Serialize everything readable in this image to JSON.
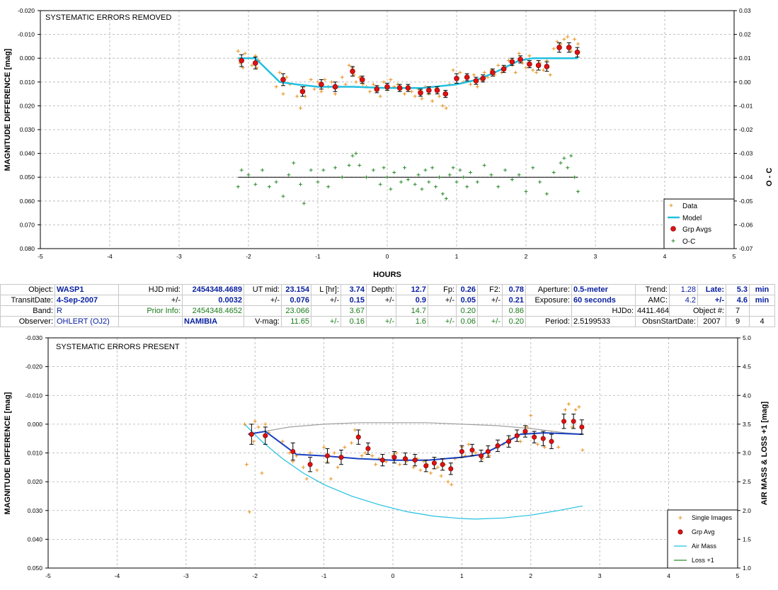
{
  "chart_data": [
    {
      "type": "scatter",
      "title": "SYSTEMATIC ERRORS REMOVED",
      "xlabel": "HOURS",
      "ylabel": "MAGNITUDE DIFFERENCE [mag]",
      "y2label": "O - C",
      "xlim": [
        -5,
        5
      ],
      "ylim": [
        -0.02,
        0.08
      ],
      "y_inverted": true,
      "y2lim": [
        -0.07,
        0.03
      ],
      "xticks": [
        "-5",
        "-4",
        "-3",
        "-2",
        "-1",
        "0",
        "1",
        "2",
        "3",
        "4",
        "5"
      ],
      "yticks": [
        "-0.020",
        "-0.010",
        "0.000",
        "0.010",
        "0.020",
        "0.030",
        "0.040",
        "0.050",
        "0.060",
        "0.070",
        "0.080"
      ],
      "y2ticks": [
        "-0.07",
        "-0.06",
        "-0.05",
        "-0.04",
        "-0.03",
        "-0.02",
        "-0.01",
        "0.00",
        "0.01",
        "0.02",
        "0.03"
      ],
      "grid": true,
      "legend_position": "bottom-right",
      "legend": [
        "Data",
        "Model",
        "Grp Avgs",
        "O-C"
      ],
      "colors": {
        "data": "#e8901a",
        "model": "#22c0e0",
        "grp": "#e01010",
        "oc": "#2a8a2a",
        "ocline": "#000000"
      },
      "oc_baseline": 0.05,
      "grp_avgs": {
        "x": [
          -2.1,
          -1.9,
          -1.5,
          -1.22,
          -0.95,
          -0.75,
          -0.5,
          -0.36,
          -0.15,
          0.0,
          0.18,
          0.3,
          0.48,
          0.6,
          0.72,
          0.84,
          1.0,
          1.15,
          1.28,
          1.38,
          1.52,
          1.68,
          1.8,
          1.92,
          2.05,
          2.18,
          2.3,
          2.48,
          2.62,
          2.74
        ],
        "y": [
          0.001,
          0.002,
          0.009,
          0.014,
          0.011,
          0.012,
          0.0055,
          0.009,
          0.013,
          0.012,
          0.0125,
          0.0125,
          0.0145,
          0.0135,
          0.0135,
          0.015,
          0.0085,
          0.008,
          0.0095,
          0.0085,
          0.006,
          0.0045,
          0.0015,
          0.0005,
          0.0025,
          0.003,
          0.0035,
          -0.0045,
          -0.0045,
          -0.0025
        ],
        "err": [
          0.0025,
          0.0025,
          0.0025,
          0.002,
          0.002,
          0.002,
          0.002,
          0.0015,
          0.0015,
          0.0015,
          0.0015,
          0.0015,
          0.0015,
          0.0015,
          0.0015,
          0.0015,
          0.002,
          0.0015,
          0.0015,
          0.0015,
          0.0015,
          0.0015,
          0.0015,
          0.0015,
          0.0015,
          0.002,
          0.002,
          0.002,
          0.002,
          0.002
        ]
      },
      "model": {
        "x": [
          -2.15,
          -1.9,
          -1.55,
          -1.3,
          -1.0,
          -0.5,
          0.0,
          0.5,
          1.0,
          1.3,
          1.55,
          1.9,
          2.1,
          2.75
        ],
        "y": [
          0.0,
          0.0,
          0.01,
          0.011,
          0.012,
          0.012,
          0.0125,
          0.0125,
          0.011,
          0.009,
          0.006,
          0.001,
          0.0,
          0.0
        ]
      },
      "data_points": {
        "x": [
          -2.15,
          -2.12,
          -2.08,
          -2.05,
          -2.0,
          -1.95,
          -1.9,
          -1.88,
          -1.85,
          -1.6,
          -1.55,
          -1.5,
          -1.45,
          -1.4,
          -1.3,
          -1.25,
          -1.2,
          -1.18,
          -1.1,
          -1.05,
          -1.0,
          -0.95,
          -0.9,
          -0.85,
          -0.8,
          -0.75,
          -0.7,
          -0.65,
          -0.6,
          -0.55,
          -0.5,
          -0.48,
          -0.45,
          -0.4,
          -0.35,
          -0.3,
          -0.25,
          -0.2,
          -0.15,
          -0.1,
          -0.05,
          0.0,
          0.05,
          0.1,
          0.15,
          0.2,
          0.25,
          0.3,
          0.35,
          0.4,
          0.45,
          0.5,
          0.55,
          0.6,
          0.65,
          0.7,
          0.75,
          0.8,
          0.85,
          0.9,
          0.95,
          1.0,
          1.05,
          1.1,
          1.15,
          1.2,
          1.25,
          1.3,
          1.35,
          1.4,
          1.45,
          1.5,
          1.55,
          1.6,
          1.65,
          1.7,
          1.75,
          1.8,
          1.85,
          1.9,
          1.95,
          2.0,
          2.05,
          2.1,
          2.15,
          2.2,
          2.25,
          2.3,
          2.35,
          2.4,
          2.45,
          2.5,
          2.55,
          2.6,
          2.65,
          2.7,
          2.75
        ],
        "y": [
          -0.003,
          0.002,
          0.004,
          -0.002,
          0.0,
          0.003,
          -0.001,
          0.004,
          0.001,
          0.012,
          0.006,
          0.015,
          0.008,
          0.011,
          0.016,
          0.021,
          0.012,
          0.016,
          0.009,
          0.013,
          0.01,
          0.014,
          0.009,
          0.012,
          0.01,
          0.015,
          0.012,
          0.008,
          0.011,
          0.003,
          0.004,
          0.007,
          0.01,
          0.008,
          0.011,
          0.012,
          0.014,
          0.011,
          0.012,
          0.016,
          0.01,
          0.013,
          0.009,
          0.012,
          0.011,
          0.013,
          0.015,
          0.012,
          0.014,
          0.016,
          0.013,
          0.017,
          0.012,
          0.015,
          0.018,
          0.013,
          0.016,
          0.02,
          0.021,
          0.011,
          0.005,
          0.009,
          0.006,
          0.01,
          0.008,
          0.011,
          0.007,
          0.012,
          0.009,
          0.006,
          0.008,
          0.005,
          0.007,
          0.003,
          0.006,
          0.004,
          0.001,
          0.003,
          0.006,
          -0.002,
          0.002,
          0.004,
          -0.001,
          0.005,
          0.006,
          0.002,
          0.005,
          0.001,
          0.007,
          -0.004,
          -0.007,
          -0.006,
          -0.008,
          -0.009,
          -0.003,
          -0.008,
          -0.006
        ]
      },
      "oc_points": {
        "x": [
          -2.15,
          -2.1,
          -2.0,
          -1.9,
          -1.8,
          -1.7,
          -1.6,
          -1.5,
          -1.42,
          -1.35,
          -1.25,
          -1.2,
          -1.1,
          -1.0,
          -0.92,
          -0.85,
          -0.75,
          -0.65,
          -0.55,
          -0.5,
          -0.45,
          -0.4,
          -0.3,
          -0.2,
          -0.1,
          -0.05,
          0.0,
          0.05,
          0.1,
          0.2,
          0.25,
          0.3,
          0.4,
          0.45,
          0.5,
          0.55,
          0.6,
          0.65,
          0.7,
          0.75,
          0.8,
          0.85,
          0.9,
          0.95,
          1.0,
          1.05,
          1.1,
          1.15,
          1.2,
          1.3,
          1.4,
          1.5,
          1.6,
          1.7,
          1.8,
          1.9,
          2.0,
          2.1,
          2.2,
          2.3,
          2.4,
          2.5,
          2.55,
          2.6,
          2.65,
          2.7,
          2.75
        ],
        "y": [
          0.054,
          0.047,
          0.049,
          0.053,
          0.047,
          0.054,
          0.052,
          0.058,
          0.049,
          0.044,
          0.053,
          0.061,
          0.047,
          0.052,
          0.047,
          0.054,
          0.046,
          0.05,
          0.045,
          0.041,
          0.04,
          0.045,
          0.05,
          0.047,
          0.053,
          0.046,
          0.05,
          0.055,
          0.048,
          0.052,
          0.046,
          0.051,
          0.053,
          0.049,
          0.055,
          0.047,
          0.052,
          0.046,
          0.054,
          0.05,
          0.057,
          0.059,
          0.049,
          0.046,
          0.052,
          0.047,
          0.05,
          0.054,
          0.048,
          0.052,
          0.045,
          0.049,
          0.054,
          0.047,
          0.051,
          0.049,
          0.056,
          0.046,
          0.052,
          0.057,
          0.048,
          0.044,
          0.042,
          0.046,
          0.041,
          0.05,
          0.056
        ]
      }
    },
    {
      "type": "scatter",
      "title": "SYSTEMATIC ERRORS PRESENT",
      "ylabel": "MAGNITUDE DIFFERENCE [mag]",
      "y2label": "AIR MASS & LOSS +1 [mag]",
      "xlim": [
        -5,
        5
      ],
      "ylim": [
        -0.03,
        0.05
      ],
      "y_inverted": true,
      "y2lim": [
        1.0,
        5.0
      ],
      "xticks": [
        "-5",
        "-4",
        "-3",
        "-2",
        "-1",
        "0",
        "1",
        "2",
        "3",
        "4",
        "5"
      ],
      "yticks": [
        "-0.030",
        "-0.020",
        "-0.010",
        "0.000",
        "0.010",
        "0.020",
        "0.030",
        "0.040",
        "0.050"
      ],
      "y2ticks": [
        "5.0",
        "4.5",
        "4.0",
        "3.5",
        "3.0",
        "2.5",
        "2.0",
        "1.5",
        "1.0"
      ],
      "grid": true,
      "legend_position": "bottom-right",
      "legend": [
        "Single Images",
        "Grp Avg",
        "Air Mass",
        "Loss +1"
      ],
      "colors": {
        "single": "#e8901a",
        "grp": "#e01010",
        "airmass": "#22c0e0",
        "loss": "#2a8a2a",
        "model": "#1840c0",
        "envelope": "#a0a0a0"
      },
      "grp_avgs": {
        "x": [
          -2.05,
          -1.85,
          -1.45,
          -1.2,
          -0.95,
          -0.75,
          -0.5,
          -0.36,
          -0.15,
          0.02,
          0.18,
          0.32,
          0.48,
          0.6,
          0.72,
          0.84,
          1.0,
          1.15,
          1.28,
          1.38,
          1.52,
          1.68,
          1.8,
          1.92,
          2.05,
          2.18,
          2.3,
          2.48,
          2.62,
          2.74
        ],
        "y": [
          0.0035,
          0.004,
          0.0095,
          0.014,
          0.011,
          0.0115,
          0.0045,
          0.0085,
          0.0125,
          0.0115,
          0.012,
          0.0125,
          0.0145,
          0.0135,
          0.014,
          0.0155,
          0.0095,
          0.009,
          0.011,
          0.0095,
          0.0075,
          0.006,
          0.004,
          0.0025,
          0.0045,
          0.005,
          0.006,
          -0.001,
          -0.001,
          0.001
        ],
        "err": [
          0.0035,
          0.003,
          0.003,
          0.0025,
          0.0025,
          0.0025,
          0.0025,
          0.002,
          0.002,
          0.002,
          0.002,
          0.002,
          0.002,
          0.002,
          0.002,
          0.002,
          0.002,
          0.002,
          0.002,
          0.002,
          0.002,
          0.002,
          0.002,
          0.002,
          0.002,
          0.0025,
          0.0025,
          0.0025,
          0.0025,
          0.0025
        ]
      },
      "model": {
        "x": [
          -2.1,
          -1.85,
          -1.4,
          -1.0,
          -0.5,
          0.0,
          0.5,
          1.0,
          1.3,
          1.55,
          1.85,
          2.2,
          2.75
        ],
        "y": [
          0.0035,
          0.0025,
          0.0105,
          0.011,
          0.012,
          0.0125,
          0.0125,
          0.0115,
          0.0105,
          0.0075,
          0.0035,
          0.003,
          0.0035
        ]
      },
      "envelope": {
        "x": [
          -2.1,
          -1.5,
          -1.0,
          -0.5,
          0.0,
          0.5,
          1.0,
          1.5,
          2.0,
          2.5,
          2.75
        ],
        "y": [
          0.0035,
          0.001,
          0.0,
          -0.0005,
          -0.0005,
          -0.0005,
          0.0,
          0.0005,
          0.0015,
          0.003,
          0.0035
        ]
      },
      "airmass": {
        "x": [
          -2.15,
          -1.9,
          -1.6,
          -1.3,
          -1.0,
          -0.6,
          -0.2,
          0.2,
          0.6,
          1.0,
          1.2,
          1.6,
          2.0,
          2.4,
          2.75
        ],
        "y": [
          3.5,
          3.2,
          2.9,
          2.65,
          2.45,
          2.25,
          2.1,
          1.98,
          1.9,
          1.86,
          1.85,
          1.87,
          1.92,
          2.0,
          2.08
        ]
      },
      "single_images": {
        "x": [
          -2.15,
          -2.12,
          -2.08,
          -2.05,
          -2.02,
          -2.0,
          -1.95,
          -1.9,
          -1.85,
          -1.8,
          -1.6,
          -1.5,
          -1.45,
          -1.4,
          -1.3,
          -1.25,
          -1.2,
          -1.1,
          -1.0,
          -0.95,
          -0.9,
          -0.85,
          -0.8,
          -0.75,
          -0.7,
          -0.6,
          -0.55,
          -0.5,
          -0.45,
          -0.4,
          -0.3,
          -0.25,
          -0.2,
          -0.1,
          0.0,
          0.05,
          0.1,
          0.2,
          0.3,
          0.35,
          0.4,
          0.45,
          0.5,
          0.55,
          0.6,
          0.65,
          0.7,
          0.75,
          0.8,
          0.85,
          0.9,
          1.0,
          1.05,
          1.1,
          1.2,
          1.3,
          1.4,
          1.5,
          1.6,
          1.7,
          1.8,
          1.85,
          1.9,
          1.95,
          2.0,
          2.05,
          2.1,
          2.2,
          2.3,
          2.4,
          2.5,
          2.55,
          2.6,
          2.65,
          2.7,
          2.75
        ],
        "y": [
          0.0,
          0.014,
          0.0305,
          0.004,
          0.006,
          -0.001,
          0.001,
          0.017,
          0.0,
          0.003,
          0.006,
          0.01,
          0.013,
          0.011,
          0.015,
          0.019,
          0.01,
          0.016,
          0.008,
          0.013,
          0.019,
          0.01,
          0.015,
          0.012,
          0.008,
          0.0065,
          0.002,
          0.004,
          0.011,
          0.01,
          0.011,
          0.014,
          0.012,
          0.013,
          0.011,
          0.01,
          0.014,
          0.013,
          0.015,
          0.012,
          0.016,
          0.013,
          0.014,
          0.017,
          0.013,
          0.015,
          0.018,
          0.014,
          0.02,
          0.021,
          0.012,
          0.008,
          0.011,
          0.007,
          0.01,
          0.012,
          0.011,
          0.008,
          0.007,
          0.005,
          0.004,
          0.006,
          0.003,
          0.001,
          -0.003,
          0.004,
          0.007,
          0.008,
          0.003,
          0.008,
          -0.005,
          -0.007,
          0.001,
          -0.005,
          -0.006,
          0.009
        ]
      }
    }
  ],
  "info_table": {
    "row1": {
      "object_label": "Object:",
      "object": "WASP1",
      "hjd_mid_label": "HJD mid:",
      "hjd_mid": "2454348.4689",
      "ut_mid_label": "UT mid:",
      "ut_mid": "23.154",
      "l_hr_label": "L [hr]:",
      "l_hr": "3.74",
      "depth_label": "Depth:",
      "depth": "12.7",
      "fp_label": "Fp:",
      "fp": "0.26",
      "f2_label": "F2:",
      "f2": "0.78",
      "aperture_label": "Aperture:",
      "aperture": "0.5-meter",
      "trend_label": "Trend:",
      "trend": "1.28",
      "late_label": "Late:",
      "late": "5.3",
      "late_unit": "min"
    },
    "row2": {
      "transit_label": "TransitDate:",
      "transit": "4-Sep-2007",
      "pm1": "+/-",
      "hjd_err": "0.0032",
      "pm2": "+/-",
      "ut_err": "0.076",
      "pm3": "+/-",
      "l_err": "0.15",
      "pm4": "+/-",
      "depth_err": "0.9",
      "pm5": "+/-",
      "fp_err": "0.05",
      "pm6": "+/-",
      "f2_err": "0.21",
      "exposure_label": "Exposure:",
      "exposure": "60 seconds",
      "amc_label": "AMC:",
      "amc": "4.2",
      "pm7": "+/-",
      "late_err": "4.6",
      "late_err_unit": "min"
    },
    "row3": {
      "band_label": "Band:",
      "band": "R",
      "prior_label": "Prior Info:",
      "prior_hjd": "2454348.4652",
      "prior_ut": "23.066",
      "prior_l": "3.67",
      "prior_depth": "14.7",
      "prior_fp": "0.20",
      "prior_f2": "0.86",
      "hjdo_label": "HJDo:",
      "hjdo": "4411.4641",
      "objnum_label": "Object #:",
      "objnum": "7"
    },
    "row4": {
      "observer_label": "Observer:",
      "observer": "OHLERT (OJ2)",
      "site": "NAMIBIA",
      "vmag_label": "V-mag:",
      "vmag": "11.65",
      "pm1": "+/-",
      "vmag_err": "0.16",
      "pm2": "+/-",
      "v2": "1.6",
      "pm3": "+/-",
      "v3": "0.06",
      "pm4": "+/-",
      "v4": "0.20",
      "period_label": "Period:",
      "period": "2.5199533",
      "obsn_label": "ObsnStartDate:",
      "obsn_year": "2007",
      "obsn_month": "9",
      "obsn_day": "4"
    }
  }
}
